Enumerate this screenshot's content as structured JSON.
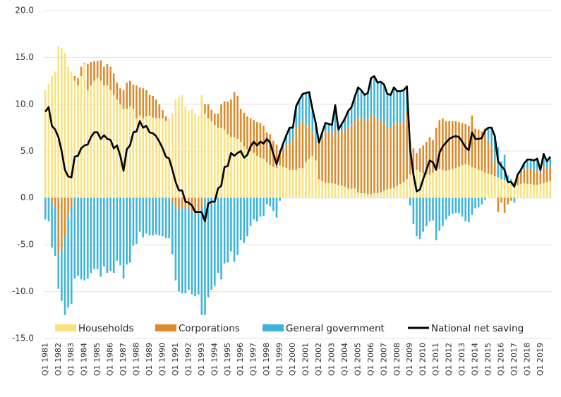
{
  "chart_data": {
    "type": "bar",
    "stacked": true,
    "categories": [
      "Q1 1981",
      null,
      null,
      null,
      "Q1 1982",
      null,
      null,
      null,
      "Q1 1983",
      null,
      null,
      null,
      "Q1 1984",
      null,
      null,
      null,
      "Q1 1985",
      null,
      null,
      null,
      "Q1 1986",
      null,
      null,
      null,
      "Q1 1987",
      null,
      null,
      null,
      "Q1 1988",
      null,
      null,
      null,
      "Q1 1989",
      null,
      null,
      null,
      "Q1 1990",
      null,
      null,
      null,
      "Q1 1991",
      null,
      null,
      null,
      "Q1 1992",
      null,
      null,
      null,
      "Q1 1993",
      null,
      null,
      null,
      "Q1 1994",
      null,
      null,
      null,
      "Q1 1995",
      null,
      null,
      null,
      "Q1 1996",
      null,
      null,
      null,
      "Q1 1997",
      null,
      null,
      null,
      "Q1 1998",
      null,
      null,
      null,
      "Q1 1999",
      null,
      null,
      null,
      "Q1 2000",
      null,
      null,
      null,
      "Q1 2001",
      null,
      null,
      null,
      "Q1 2002",
      null,
      null,
      null,
      "Q1 2003",
      null,
      null,
      null,
      "Q1 2004",
      null,
      null,
      null,
      "Q1 2005",
      null,
      null,
      null,
      "Q1 2006",
      null,
      null,
      null,
      "Q1 2007",
      null,
      null,
      null,
      "Q1 2008",
      null,
      null,
      null,
      "Q1 2009",
      null,
      null,
      null,
      "Q1 2010",
      null,
      null,
      null,
      "Q1 2011",
      null,
      null,
      null,
      "Q1 2012",
      null,
      null,
      null,
      "Q1 2013",
      null,
      null,
      null,
      "Q1 2014",
      null,
      null,
      null,
      "Q1 2015",
      null,
      null,
      null,
      "Q1 2016",
      null,
      null,
      null,
      "Q1 2017",
      null,
      null,
      null,
      "Q1 2018",
      null,
      null,
      null,
      "Q1 2019",
      null,
      null,
      null
    ],
    "series": [
      {
        "name": "Households",
        "color": "#f8e27e",
        "values": [
          11.5,
          12.2,
          13,
          13.5,
          16.2,
          16,
          15.5,
          14,
          13.5,
          12.5,
          12,
          13,
          14.3,
          11.5,
          12,
          12.5,
          12.8,
          12.5,
          12,
          12,
          11.5,
          11,
          10.5,
          10,
          9.5,
          9.5,
          9.8,
          9.5,
          8.5,
          8.8,
          8.5,
          8.7,
          8.8,
          8.6,
          8.5,
          8.5,
          8.5,
          8.2,
          8.5,
          9,
          10.5,
          10.8,
          11,
          9.8,
          9.3,
          9.5,
          9,
          8.8,
          11,
          9,
          8.5,
          8.2,
          7.8,
          7.5,
          7.5,
          7.3,
          6.8,
          6.5,
          6.5,
          6.3,
          6,
          5.5,
          5.2,
          5,
          4.8,
          4.5,
          4.3,
          4.2,
          3.8,
          3.5,
          3.3,
          3.2,
          3.5,
          3.3,
          3.2,
          3,
          3,
          3,
          3.2,
          3.2,
          3.8,
          4.2,
          4.5,
          4,
          2,
          1.8,
          1.6,
          1.6,
          1.6,
          1.5,
          1.4,
          1.3,
          1.2,
          1,
          1,
          1,
          0.6,
          0.5,
          0.5,
          0.4,
          0.4,
          0.5,
          0.5,
          0.6,
          0.8,
          0.9,
          1,
          1.1,
          1.3,
          1.5,
          1.7,
          2,
          2.5,
          2.8,
          3,
          2.8,
          2.6,
          2.5,
          2.5,
          2.7,
          3,
          3.1,
          3,
          2.9,
          3,
          3.1,
          3.2,
          3.3,
          3.5,
          3.6,
          3.5,
          3.3,
          3.2,
          3,
          2.9,
          2.7,
          2.6,
          2.5,
          2.3,
          2.2,
          2,
          1.9,
          1.8,
          1.7,
          1.5,
          1.4,
          1.5,
          1.6,
          1.5,
          1.5,
          1.4,
          1.4,
          1.5,
          1.6,
          1.7,
          1.8
        ]
      },
      {
        "name": "Corporations",
        "color": "#dc8b2b",
        "values": [
          0,
          0,
          -0.5,
          -1,
          -6,
          -5.5,
          -4,
          -2,
          -1,
          0.5,
          0.8,
          1,
          0.1,
          2.8,
          2.5,
          2.1,
          1.8,
          2.2,
          2,
          2.3,
          2.5,
          2.3,
          1.8,
          1.7,
          2,
          2.8,
          2.7,
          2.6,
          3.5,
          3,
          3.2,
          2.8,
          2.2,
          2.3,
          2,
          1.5,
          0.9,
          0.5,
          0,
          -0.5,
          -1,
          -1.2,
          -1,
          -1,
          -1.2,
          -1.5,
          -1.6,
          -1.5,
          -1,
          1,
          1.5,
          1.2,
          1.2,
          1.5,
          2.5,
          3,
          3.5,
          4,
          4.8,
          4.6,
          3.5,
          3.6,
          3.5,
          3.5,
          3.5,
          3.6,
          3.7,
          3.5,
          3.2,
          3.3,
          2.8,
          2.5,
          1.6,
          1.8,
          2.5,
          2.8,
          3.5,
          4.5,
          4.6,
          5,
          4,
          3.5,
          2.5,
          2,
          3.8,
          4.6,
          5.5,
          5.5,
          5.2,
          5.8,
          5.5,
          5.9,
          6,
          6.5,
          6.8,
          7.3,
          8,
          8,
          7.8,
          8,
          8.5,
          8.3,
          7.8,
          7.5,
          7.3,
          6.5,
          6.5,
          6.8,
          6.6,
          6.5,
          6.5,
          7.3,
          3.5,
          2.5,
          1.8,
          2.5,
          3,
          3.5,
          4,
          3.5,
          4.5,
          5.2,
          5.5,
          5.3,
          5.2,
          5.1,
          5,
          4.8,
          4.5,
          4.3,
          4.2,
          5.5,
          4.2,
          4.3,
          4.2,
          4.7,
          3.5,
          3,
          1.5,
          -1.5,
          -0.5,
          -1.6,
          -0.7,
          -0.3,
          0.2,
          1,
          1.2,
          1.5,
          1.7,
          1.6,
          1.5,
          1.6,
          1.2,
          1.8,
          1.4,
          1.6
        ]
      },
      {
        "name": "General government",
        "color": "#3db5da",
        "values": [
          -2.3,
          -2.5,
          -4.8,
          -5.2,
          -3.7,
          -5.5,
          -8.5,
          -9.7,
          -10.3,
          -8.6,
          -8.3,
          -8.7,
          -8.8,
          -8.6,
          -8,
          -7.6,
          -7.6,
          -8.4,
          -7.3,
          -8,
          -7.8,
          -8,
          -6.7,
          -7.2,
          -8.6,
          -7.1,
          -6.9,
          -5.1,
          -4.9,
          -3.6,
          -4.2,
          -3.8,
          -4,
          -4,
          -3.9,
          -4,
          -4.1,
          -4.3,
          -4.3,
          -5.5,
          -7.8,
          -8.8,
          -9.2,
          -9.2,
          -8.6,
          -8.8,
          -8.9,
          -8.8,
          -11.5,
          -12.5,
          -10.6,
          -9.8,
          -9.4,
          -8,
          -8.7,
          -7,
          -6.9,
          -5.7,
          -6.8,
          -6.1,
          -4.5,
          -4.8,
          -4.1,
          -3,
          -2.3,
          -2.5,
          -2,
          -1.9,
          -0.7,
          -0.9,
          -1.4,
          -2.1,
          -0.3,
          0.7,
          1,
          1.7,
          1,
          2.3,
          2.7,
          2.9,
          3.4,
          3.6,
          2.5,
          2,
          0.1,
          0.6,
          0.9,
          0.8,
          1,
          2.6,
          0.4,
          0.7,
          1.3,
          1.8,
          1.9,
          2.5,
          3.2,
          3,
          2.7,
          2.8,
          3.9,
          4.2,
          4,
          4.3,
          4,
          3.7,
          3.5,
          3.9,
          3.5,
          3.4,
          3.3,
          2.6,
          -0.8,
          -2.8,
          -4.1,
          -4.4,
          -3.6,
          -3,
          -2.5,
          -2.4,
          -4.5,
          -3.5,
          -3,
          -2.3,
          -1.9,
          -1.7,
          -1.6,
          -1.6,
          -2,
          -2.5,
          -2.6,
          -1.8,
          -1.1,
          -1,
          -0.7,
          -0.2,
          1.4,
          2,
          2.8,
          3.2,
          1.9,
          2.7,
          0.6,
          0.3,
          -0.5,
          0.1,
          0.3,
          0.6,
          0.9,
          1,
          1.1,
          1.2,
          0.3,
          1.3,
          0.8,
          1
        ]
      },
      {
        "name": "National net saving",
        "color": "#000000",
        "type": "line",
        "values": [
          9.2,
          9.7,
          7.7,
          7.3,
          6.5,
          5,
          3,
          2.3,
          2.2,
          4.4,
          4.5,
          5.3,
          5.6,
          5.7,
          6.5,
          7,
          7,
          6.3,
          6.7,
          6.3,
          6.2,
          5.3,
          5.6,
          4.5,
          2.9,
          5.2,
          5.6,
          7,
          7.1,
          8.2,
          7.5,
          7.7,
          7,
          6.9,
          6.6,
          6,
          5.3,
          4.4,
          4.2,
          3,
          1.7,
          0.8,
          0.8,
          -0.4,
          -0.5,
          -0.8,
          -1.5,
          -1.5,
          -1.5,
          -2.5,
          -0.6,
          -0.4,
          -0.4,
          1,
          1.3,
          3.3,
          3.4,
          4.8,
          4.5,
          4.8,
          5,
          4.3,
          4.6,
          5.5,
          6,
          5.6,
          6,
          5.8,
          6.3,
          5.9,
          4.7,
          3.6,
          4.8,
          5.8,
          6.7,
          7.5,
          7.5,
          9.8,
          10.5,
          11.1,
          11.2,
          11.3,
          9.5,
          8,
          5.9,
          7,
          8,
          7.9,
          7.8,
          9.9,
          7.3,
          7.9,
          8.5,
          9.3,
          9.7,
          10.8,
          11.8,
          11.5,
          11,
          11.2,
          12.8,
          13,
          12.3,
          12.4,
          12.1,
          11.1,
          11,
          11.8,
          11.4,
          11.4,
          11.5,
          11.9,
          5.2,
          2.5,
          0.7,
          0.9,
          2,
          3,
          4,
          3.8,
          3,
          4.8,
          5.5,
          5.9,
          6.3,
          6.5,
          6.6,
          6.5,
          6,
          5.4,
          5.1,
          7,
          6.3,
          6.3,
          6.4,
          7.2,
          7.5,
          7.5,
          6.6,
          3.9,
          3.4,
          3,
          1.7,
          1.7,
          1.2,
          2.5,
          3,
          3.7,
          4.1,
          4.1,
          4,
          4.2,
          3,
          4.7,
          3.9,
          4.4
        ]
      }
    ],
    "ylim": [
      -15,
      20
    ],
    "yticks": [
      {
        "value": -15,
        "label": "-15.0"
      },
      {
        "value": -10,
        "label": "-10.0"
      },
      {
        "value": -5,
        "label": "-5.0"
      },
      {
        "value": 0,
        "label": "0.0"
      },
      {
        "value": 5,
        "label": "5.0"
      },
      {
        "value": 10,
        "label": "10.0"
      },
      {
        "value": 15,
        "label": "15.0"
      },
      {
        "value": 20,
        "label": "20.0"
      }
    ],
    "grid": true,
    "legend": "bottom"
  }
}
